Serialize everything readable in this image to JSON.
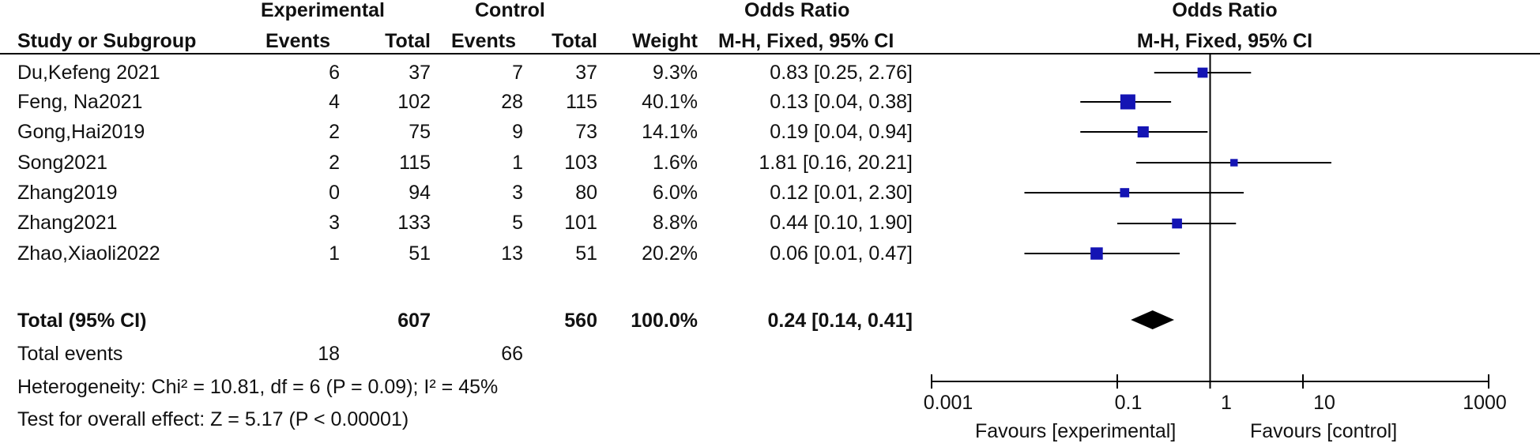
{
  "headers": {
    "group_experimental": "Experimental",
    "group_control": "Control",
    "group_or": "Odds Ratio",
    "study": "Study or Subgroup",
    "events_e": "Events",
    "total_e": "Total",
    "events_c": "Events",
    "total_c": "Total",
    "weight": "Weight",
    "method": "M-H, Fixed, 95% CI",
    "plot_title": "Odds Ratio",
    "plot_method": "M-H, Fixed, 95% CI"
  },
  "rows": [
    {
      "study": "Du,Kefeng 2021",
      "ee": "6",
      "te": "37",
      "ec": "7",
      "tc": "37",
      "w": "9.3%",
      "ci": "0.83 [0.25, 2.76]"
    },
    {
      "study": "Feng, Na2021",
      "ee": "4",
      "te": "102",
      "ec": "28",
      "tc": "115",
      "w": "40.1%",
      "ci": "0.13 [0.04, 0.38]"
    },
    {
      "study": "Gong,Hai2019",
      "ee": "2",
      "te": "75",
      "ec": "9",
      "tc": "73",
      "w": "14.1%",
      "ci": "0.19 [0.04, 0.94]"
    },
    {
      "study": "Song2021",
      "ee": "2",
      "te": "115",
      "ec": "1",
      "tc": "103",
      "w": "1.6%",
      "ci": "1.81 [0.16, 20.21]"
    },
    {
      "study": "Zhang2019",
      "ee": "0",
      "te": "94",
      "ec": "3",
      "tc": "80",
      "w": "6.0%",
      "ci": "0.12 [0.01, 2.30]"
    },
    {
      "study": "Zhang2021",
      "ee": "3",
      "te": "133",
      "ec": "5",
      "tc": "101",
      "w": "8.8%",
      "ci": "0.44 [0.10, 1.90]"
    },
    {
      "study": "Zhao,Xiaoli2022",
      "ee": "1",
      "te": "51",
      "ec": "13",
      "tc": "51",
      "w": "20.2%",
      "ci": "0.06 [0.01, 0.47]"
    }
  ],
  "total": {
    "label": "Total (95% CI)",
    "te": "607",
    "tc": "560",
    "w": "100.0%",
    "ci": "0.24 [0.14, 0.41]"
  },
  "events": {
    "label": "Total events",
    "e": "18",
    "c": "66"
  },
  "heterogeneity": "Heterogeneity: Chi² = 10.81, df = 6 (P = 0.09); I² = 45%",
  "overall": "Test for overall effect: Z = 5.17 (P < 0.00001)",
  "axis": {
    "ticks": [
      "0.001",
      "0.1",
      "1",
      "10",
      "1000"
    ],
    "favours_left": "Favours [experimental]",
    "favours_right": "Favours [control]"
  },
  "colors": {
    "marker": "#1414b4",
    "line": "#000000",
    "diamond": "#000000"
  },
  "chart_data": {
    "type": "forest",
    "scale": "log",
    "xlim": [
      0.001,
      1000
    ],
    "reference_line": 1,
    "studies": [
      {
        "name": "Du,Kefeng 2021",
        "or": 0.83,
        "lo": 0.25,
        "hi": 2.76,
        "weight": 9.3
      },
      {
        "name": "Feng, Na2021",
        "or": 0.13,
        "lo": 0.04,
        "hi": 0.38,
        "weight": 40.1
      },
      {
        "name": "Gong,Hai2019",
        "or": 0.19,
        "lo": 0.04,
        "hi": 0.94,
        "weight": 14.1
      },
      {
        "name": "Song2021",
        "or": 1.81,
        "lo": 0.16,
        "hi": 20.21,
        "weight": 1.6
      },
      {
        "name": "Zhang2019",
        "or": 0.12,
        "lo": 0.01,
        "hi": 2.3,
        "weight": 6.0
      },
      {
        "name": "Zhang2021",
        "or": 0.44,
        "lo": 0.1,
        "hi": 1.9,
        "weight": 8.8
      },
      {
        "name": "Zhao,Xiaoli2022",
        "or": 0.06,
        "lo": 0.01,
        "hi": 0.47,
        "weight": 20.2
      }
    ],
    "pooled": {
      "or": 0.24,
      "lo": 0.14,
      "hi": 0.41
    }
  }
}
